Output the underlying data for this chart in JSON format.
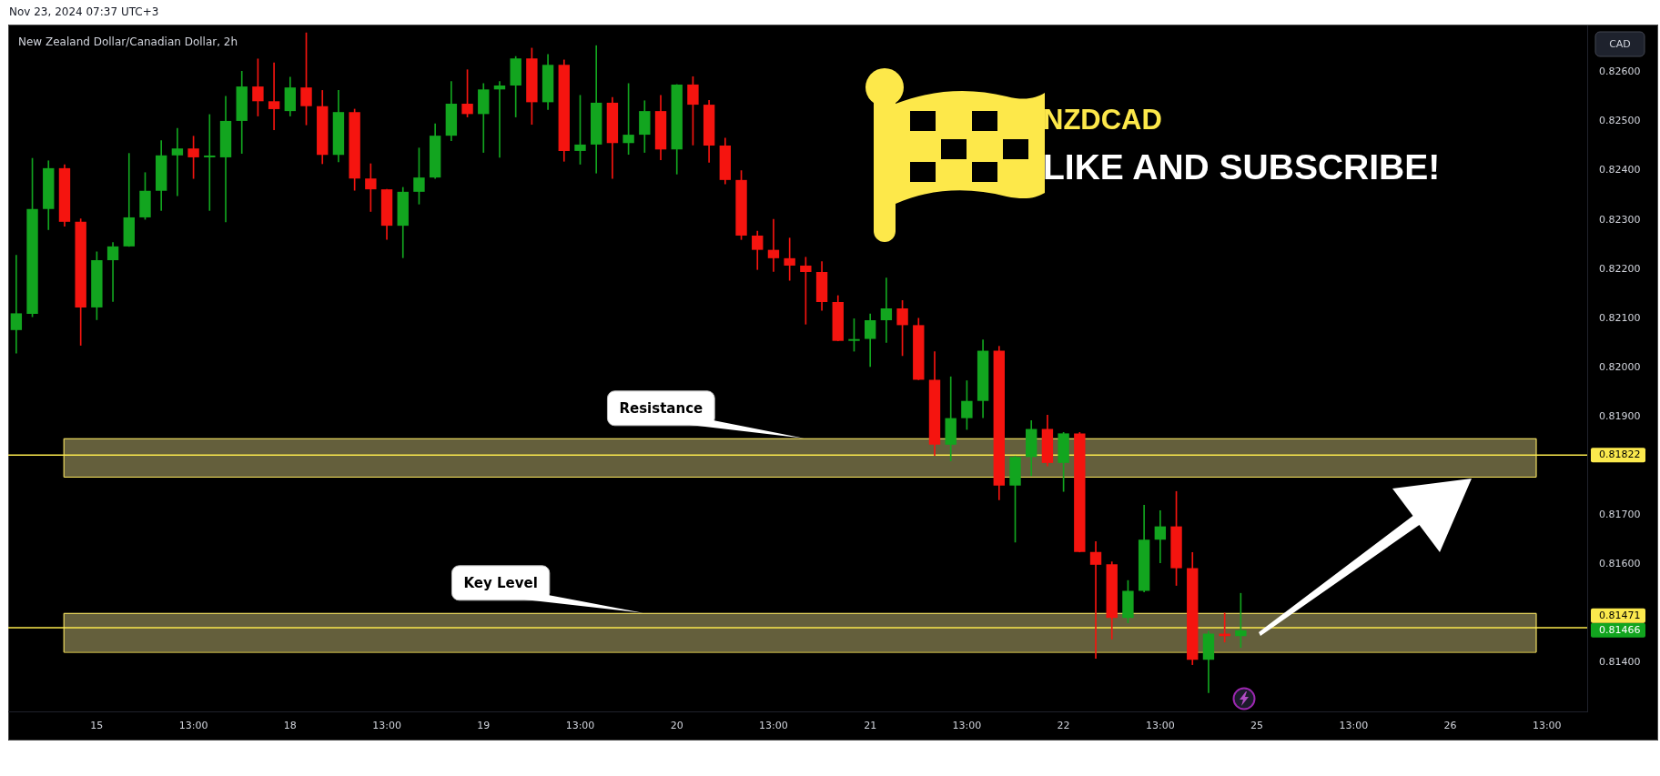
{
  "chart_data": {
    "type": "candlestick",
    "title": "New Zealand Dollar/Canadian Dollar, 2h",
    "ylabel": "CAD",
    "categories": [
      null,
      null,
      null,
      null,
      null,
      "15",
      null,
      null,
      null,
      null,
      null,
      "13:00",
      null,
      null,
      null,
      null,
      null,
      "18",
      null,
      null,
      null,
      null,
      null,
      "13:00",
      null,
      null,
      null,
      null,
      null,
      "19",
      null,
      null,
      null,
      null,
      null,
      "13:00",
      null,
      null,
      null,
      null,
      null,
      "20",
      null,
      null,
      null,
      null,
      null,
      "13:00",
      null,
      null,
      null,
      null,
      null,
      "21",
      null,
      null,
      null,
      null,
      null,
      "13:00",
      null,
      null,
      null,
      null,
      null,
      "22",
      null,
      null,
      null,
      null,
      null,
      "13:00",
      null,
      null,
      null,
      null,
      null,
      "25",
      null,
      null,
      null,
      null,
      null,
      "13:00",
      null,
      null,
      null,
      null,
      null,
      "26",
      null,
      null,
      null,
      null,
      null,
      "13:00",
      null,
      null
    ],
    "ohlc": [
      [
        0.82076,
        0.82228,
        0.82029,
        0.8211
      ],
      [
        0.82109,
        0.82425,
        0.82103,
        0.82322
      ],
      [
        0.82322,
        0.8242,
        0.8228,
        0.82405
      ],
      [
        0.82405,
        0.82412,
        0.82287,
        0.82296
      ],
      [
        0.82296,
        0.82302,
        0.82045,
        0.82122
      ],
      [
        0.82122,
        0.82235,
        0.82097,
        0.82218
      ],
      [
        0.82218,
        0.82254,
        0.82134,
        0.82246
      ],
      [
        0.82246,
        0.82435,
        0.82246,
        0.82305
      ],
      [
        0.82305,
        0.82396,
        0.82301,
        0.82359
      ],
      [
        0.82359,
        0.82461,
        0.82319,
        0.82431
      ],
      [
        0.82431,
        0.82486,
        0.82349,
        0.82445
      ],
      [
        0.82445,
        0.8247,
        0.82384,
        0.82427
      ],
      [
        0.82427,
        0.82514,
        0.82319,
        0.82427
      ],
      [
        0.82427,
        0.82551,
        0.82296,
        0.82501
      ],
      [
        0.82501,
        0.82602,
        0.82435,
        0.82571
      ],
      [
        0.82571,
        0.82627,
        0.82511,
        0.82541
      ],
      [
        0.82541,
        0.82619,
        0.82483,
        0.82525
      ],
      [
        0.82521,
        0.8259,
        0.82511,
        0.82569
      ],
      [
        0.82569,
        0.8268,
        0.82493,
        0.82531
      ],
      [
        0.82531,
        0.82563,
        0.82414,
        0.82432
      ],
      [
        0.82432,
        0.82563,
        0.82418,
        0.82519
      ],
      [
        0.82519,
        0.82525,
        0.8236,
        0.82384
      ],
      [
        0.82384,
        0.82414,
        0.82317,
        0.82362
      ],
      [
        0.82362,
        0.82362,
        0.8226,
        0.82288
      ],
      [
        0.82288,
        0.82366,
        0.82223,
        0.82357
      ],
      [
        0.82357,
        0.82446,
        0.82332,
        0.82386
      ],
      [
        0.82386,
        0.82495,
        0.82384,
        0.82471
      ],
      [
        0.82471,
        0.82581,
        0.82461,
        0.82536
      ],
      [
        0.82536,
        0.82605,
        0.82509,
        0.82515
      ],
      [
        0.82515,
        0.82577,
        0.82437,
        0.82565
      ],
      [
        0.82565,
        0.82581,
        0.82427,
        0.82573
      ],
      [
        0.82573,
        0.82632,
        0.82509,
        0.82628
      ],
      [
        0.82628,
        0.82649,
        0.82494,
        0.82539
      ],
      [
        0.82539,
        0.82636,
        0.82524,
        0.82615
      ],
      [
        0.82615,
        0.82625,
        0.82419,
        0.8244
      ],
      [
        0.8244,
        0.82553,
        0.82413,
        0.82453
      ],
      [
        0.82453,
        0.82654,
        0.82395,
        0.82538
      ],
      [
        0.82538,
        0.82549,
        0.82384,
        0.82456
      ],
      [
        0.82456,
        0.82577,
        0.82433,
        0.82473
      ],
      [
        0.82473,
        0.82542,
        0.82437,
        0.82521
      ],
      [
        0.82521,
        0.82553,
        0.82422,
        0.82443
      ],
      [
        0.82443,
        0.82575,
        0.82393,
        0.82575
      ],
      [
        0.82575,
        0.82591,
        0.82452,
        0.82534
      ],
      [
        0.82534,
        0.82543,
        0.82417,
        0.82451
      ],
      [
        0.82451,
        0.82466,
        0.82373,
        0.82381
      ],
      [
        0.82381,
        0.824,
        0.8226,
        0.82268
      ],
      [
        0.82268,
        0.82277,
        0.82199,
        0.82239
      ],
      [
        0.82239,
        0.82301,
        0.82195,
        0.82222
      ],
      [
        0.82222,
        0.82263,
        0.82177,
        0.82207
      ],
      [
        0.82207,
        0.82224,
        0.82088,
        0.82194
      ],
      [
        0.82194,
        0.82215,
        0.82116,
        0.82133
      ],
      [
        0.82133,
        0.82146,
        0.82054,
        0.82054
      ],
      [
        0.82054,
        0.82099,
        0.82033,
        0.82056
      ],
      [
        0.82058,
        0.82109,
        0.82002,
        0.82096
      ],
      [
        0.82096,
        0.82182,
        0.82051,
        0.8212
      ],
      [
        0.8212,
        0.82136,
        0.82024,
        0.82086
      ],
      [
        0.82086,
        0.821,
        0.81975,
        0.81975
      ],
      [
        0.81975,
        0.82032,
        0.81821,
        0.81843
      ],
      [
        0.81843,
        0.81981,
        0.8181,
        0.81897
      ],
      [
        0.81897,
        0.81973,
        0.81874,
        0.81932
      ],
      [
        0.81932,
        0.82056,
        0.81898,
        0.82034
      ],
      [
        0.82034,
        0.82043,
        0.81731,
        0.8176
      ],
      [
        0.8176,
        0.8182,
        0.81645,
        0.81818
      ],
      [
        0.81818,
        0.81892,
        0.8178,
        0.81875
      ],
      [
        0.81875,
        0.81903,
        0.818,
        0.81806
      ],
      [
        0.81806,
        0.81868,
        0.81748,
        0.81866
      ],
      [
        0.81866,
        0.81868,
        0.81625,
        0.81625
      ],
      [
        0.81625,
        0.81646,
        0.81409,
        0.81599
      ],
      [
        0.816,
        0.81605,
        0.81448,
        0.81491
      ],
      [
        0.81491,
        0.81567,
        0.81481,
        0.81546
      ],
      [
        0.81546,
        0.8172,
        0.81544,
        0.8165
      ],
      [
        0.8165,
        0.81709,
        0.81603,
        0.81677
      ],
      [
        0.81677,
        0.81748,
        0.81557,
        0.81592
      ],
      [
        0.81592,
        0.81624,
        0.81396,
        0.81406
      ],
      [
        0.81406,
        0.81464,
        0.81339,
        0.81459
      ],
      [
        0.81459,
        0.81501,
        0.81442,
        0.81454
      ],
      [
        0.81454,
        0.81541,
        0.81431,
        0.81466
      ],
      null,
      null,
      null,
      null,
      null,
      null,
      null,
      null,
      null,
      null,
      null,
      null,
      null,
      null,
      null,
      null,
      null,
      null,
      null,
      null,
      null
    ],
    "colors": [
      "#12a51f",
      "#12a51f",
      "#12a51f",
      "#f5140f",
      "#f5140f",
      "#12a51f",
      "#12a51f",
      "#12a51f",
      "#12a51f",
      "#12a51f",
      "#12a51f",
      "#f5140f",
      "#12a51f",
      "#12a51f",
      "#12a51f",
      "#f5140f",
      "#f5140f",
      "#12a51f",
      "#f5140f",
      "#f5140f",
      "#12a51f",
      "#f5140f",
      "#f5140f",
      "#f5140f",
      "#12a51f",
      "#12a51f",
      "#12a51f",
      "#12a51f",
      "#f5140f",
      "#12a51f",
      "#12a51f",
      "#12a51f",
      "#f5140f",
      "#12a51f",
      "#f5140f",
      "#12a51f",
      "#12a51f",
      "#f5140f",
      "#12a51f",
      "#12a51f",
      "#f5140f",
      "#12a51f",
      "#f5140f",
      "#f5140f",
      "#f5140f",
      "#f5140f",
      "#f5140f",
      "#f5140f",
      "#f5140f",
      "#f5140f",
      "#f5140f",
      "#f5140f",
      "#12a51f",
      "#12a51f",
      "#12a51f",
      "#f5140f",
      "#f5140f",
      "#f5140f",
      "#12a51f",
      "#12a51f",
      "#12a51f",
      "#f5140f",
      "#12a51f",
      "#12a51f",
      "#f5140f",
      "#12a51f",
      "#f5140f",
      "#f5140f",
      "#f5140f",
      "#12a51f",
      "#12a51f",
      "#12a51f",
      "#f5140f",
      "#f5140f",
      "#12a51f",
      "#f5140f",
      "#12a51f",
      null,
      null,
      null,
      null,
      null,
      null,
      null,
      null,
      null,
      null,
      null,
      null,
      null,
      null,
      null,
      null,
      null,
      null,
      null,
      null,
      null
    ],
    "ylim": [
      0.81301,
      0.82695
    ],
    "yticks": [
      {
        "value": 0.814,
        "label": "0.81400"
      },
      {
        "value": 0.816,
        "label": "0.81600"
      },
      {
        "value": 0.817,
        "label": "0.81700"
      },
      {
        "value": 0.819,
        "label": "0.81900"
      },
      {
        "value": 0.82,
        "label": "0.82000"
      },
      {
        "value": 0.821,
        "label": "0.82100"
      },
      {
        "value": 0.822,
        "label": "0.82200"
      },
      {
        "value": 0.823,
        "label": "0.82300"
      },
      {
        "value": 0.824,
        "label": "0.82400"
      },
      {
        "value": 0.825,
        "label": "0.82500"
      },
      {
        "value": 0.826,
        "label": "0.82600"
      }
    ],
    "ref_lines": [
      {
        "axis": "y",
        "value": 0.81822,
        "label": "0.81822",
        "color": "#fbe94d"
      },
      {
        "axis": "y",
        "value": 0.81471,
        "label": "0.81471",
        "color": "#fbe94d"
      }
    ],
    "bands": [
      {
        "axis": "y",
        "from": 0.81778,
        "to": 0.81856,
        "label": "Resistance",
        "color": "#645f3c"
      },
      {
        "axis": "y",
        "from": 0.81422,
        "to": 0.81501,
        "label": "Key Level",
        "color": "#645f3c"
      }
    ],
    "annotations": [
      "Nov 23, 2024 07:37 UTC+3",
      "NZDCAD",
      "LIKE AND SUBSCRIBE!",
      "0.81466"
    ]
  }
}
